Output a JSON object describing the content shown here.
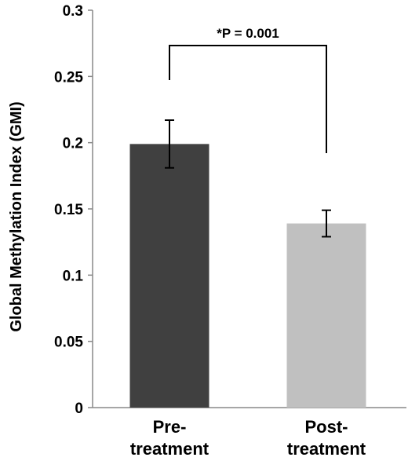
{
  "chart_data": {
    "type": "bar",
    "categories": [
      [
        "Pre-",
        "treatment"
      ],
      [
        "Post-",
        "treatment"
      ]
    ],
    "values": [
      0.199,
      0.139
    ],
    "error": [
      0.018,
      0.01
    ],
    "colors": [
      "#404040",
      "#c0c0c0"
    ],
    "ylabel": "Global Methylation Index (GMI)",
    "ylim": [
      0,
      0.3
    ],
    "yticks": [
      "0",
      "0.05",
      "0.1",
      "0.15",
      "0.2",
      "0.25",
      "0.3"
    ],
    "grid": false,
    "annotation": "*P = 0.001"
  }
}
